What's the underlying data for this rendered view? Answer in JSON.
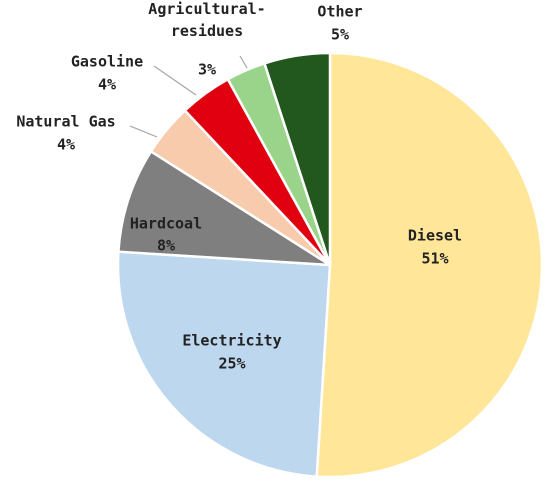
{
  "chart_data": {
    "type": "pie",
    "categories": [
      "Diesel",
      "Electricity",
      "Hardcoal",
      "Natural Gas",
      "Gasoline",
      "Agricultural-residues",
      "Other"
    ],
    "values": [
      51,
      25,
      8,
      4,
      4,
      3,
      5
    ],
    "value_labels": [
      "51%",
      "25%",
      "8%",
      "4%",
      "4%",
      "3%",
      "5%"
    ],
    "colors": [
      "#ffe699",
      "#bdd7ee",
      "#7f7f7f",
      "#f8cbad",
      "#e00010",
      "#9ad48a",
      "#22581e"
    ]
  }
}
